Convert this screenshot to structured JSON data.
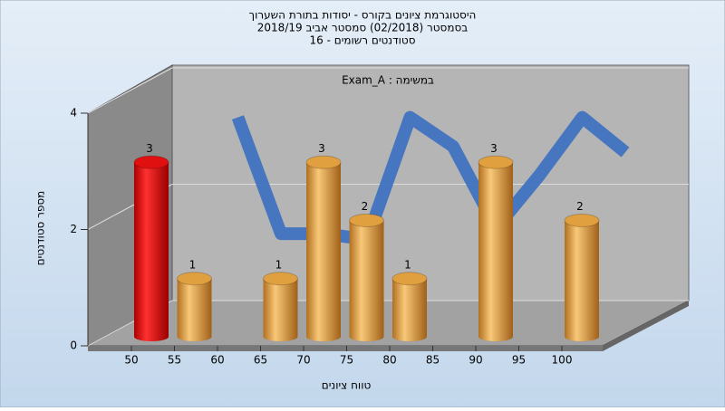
{
  "chart_data": {
    "type": "bar",
    "title": [
      "היסטוגרמת ציונים בקורס - יסודות בתורת השערוך",
      "בסמסטר  (02/2018)  סמסטר אביב 2018/19",
      "סטודנטים רשומים - 16"
    ],
    "annotation": "Exam_A : במשימה",
    "x_label": "טווח ציונים",
    "y_label": "מספר סטודנטים",
    "categories": [
      "50",
      "55",
      "60",
      "65",
      "70",
      "75",
      "80",
      "85",
      "90",
      "95",
      "100"
    ],
    "values": [
      3,
      1,
      0,
      1,
      3,
      2,
      1,
      0,
      3,
      0,
      2
    ],
    "colors": [
      "#e01010",
      "#e0a040",
      "#e0a040",
      "#e0a040",
      "#e0a040",
      "#e0a040",
      "#e0a040",
      "#e0a040",
      "#e0a040",
      "#e0a040",
      "#e0a040"
    ],
    "line": {
      "color": "#3a6fc0",
      "values": [
        null,
        3.5,
        1.5,
        1.5,
        1.4,
        3.5,
        3.0,
        1.6,
        2.5,
        3.5,
        2.9
      ]
    },
    "ylim": [
      0,
      4
    ],
    "yticks": [
      0,
      2,
      4
    ],
    "grid": true
  }
}
